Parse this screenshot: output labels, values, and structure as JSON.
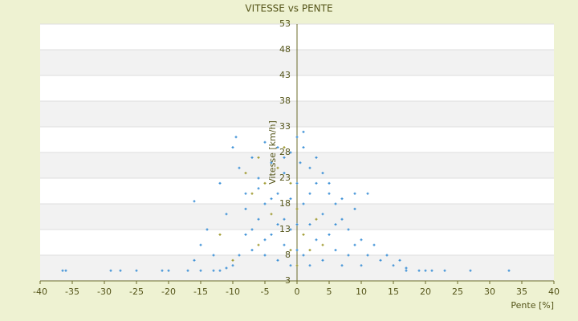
{
  "chart_data": {
    "type": "scatter",
    "title": "VITESSE vs PENTE",
    "x_label": "Pente [%]",
    "y_label": "Vitesse [km/h]",
    "xlim": [
      -40,
      40
    ],
    "xticks": [
      -40,
      -35,
      -30,
      -25,
      -20,
      -15,
      -10,
      -5,
      0,
      5,
      10,
      15,
      20,
      25,
      30,
      35,
      40
    ],
    "ylim": [
      3,
      53
    ],
    "yticks": [
      3,
      8,
      13,
      18,
      23,
      28,
      33,
      38,
      43,
      48,
      53
    ],
    "grid": true,
    "series": [
      {
        "color": "#3a8fd6",
        "x": [
          -36.5,
          -36,
          -29,
          -27.5,
          -25,
          -21,
          -20,
          -17,
          -15,
          -13,
          -12,
          17,
          19,
          20,
          21,
          23,
          27,
          33,
          -16,
          -14,
          -12,
          -11,
          -10,
          -9.5,
          -9,
          -8,
          -8,
          -7,
          -7,
          -6,
          -6,
          -5,
          -5,
          -5,
          -4,
          -4,
          -3,
          -3,
          -3,
          -2,
          -2,
          -2,
          -1,
          -1,
          -1,
          0,
          0,
          0,
          0,
          0.5,
          1,
          1,
          1,
          2,
          2,
          2,
          3,
          3,
          4,
          4,
          4,
          5,
          5,
          6,
          6,
          7,
          7,
          8,
          8,
          9,
          9,
          10,
          10,
          11,
          11,
          12,
          13,
          14,
          15,
          16,
          17,
          -10,
          -11,
          -9,
          -8,
          -6,
          -4,
          -2,
          1,
          3,
          5,
          7,
          9,
          6,
          2,
          -1,
          -3,
          -5,
          -7,
          -13,
          -15,
          -16
        ],
        "y": [
          5,
          5,
          5,
          5,
          5,
          5,
          5,
          5,
          5,
          5,
          5,
          5,
          5,
          5,
          5,
          5,
          5,
          5,
          18.5,
          13,
          22,
          16,
          29,
          31,
          25,
          20,
          12,
          27,
          9,
          23,
          15,
          30,
          18,
          8,
          26,
          12,
          29,
          20,
          7,
          24,
          15,
          10,
          28,
          19,
          6,
          31,
          22,
          14,
          9,
          26,
          32,
          18,
          8,
          25,
          14,
          6,
          22,
          11,
          24,
          16,
          7,
          20,
          12,
          18,
          9,
          15,
          6,
          13,
          8,
          17,
          10,
          11,
          6,
          20,
          8,
          10,
          7,
          8,
          6,
          7,
          5.5,
          6,
          5.5,
          8,
          17,
          21,
          19,
          27,
          29,
          27,
          22,
          19,
          20,
          14,
          20,
          13,
          14,
          11,
          13,
          8,
          10,
          7
        ]
      },
      {
        "color": "#a09a30",
        "x": [
          -8,
          -7,
          -6,
          -5,
          -4,
          -3,
          -2,
          -1,
          0,
          1,
          2,
          3,
          4,
          -6,
          -10,
          -12,
          -1,
          0
        ],
        "y": [
          24,
          20,
          27,
          22,
          16,
          25,
          29,
          22,
          17,
          12,
          9,
          15,
          10,
          10,
          7,
          12,
          9,
          6
        ]
      }
    ]
  }
}
